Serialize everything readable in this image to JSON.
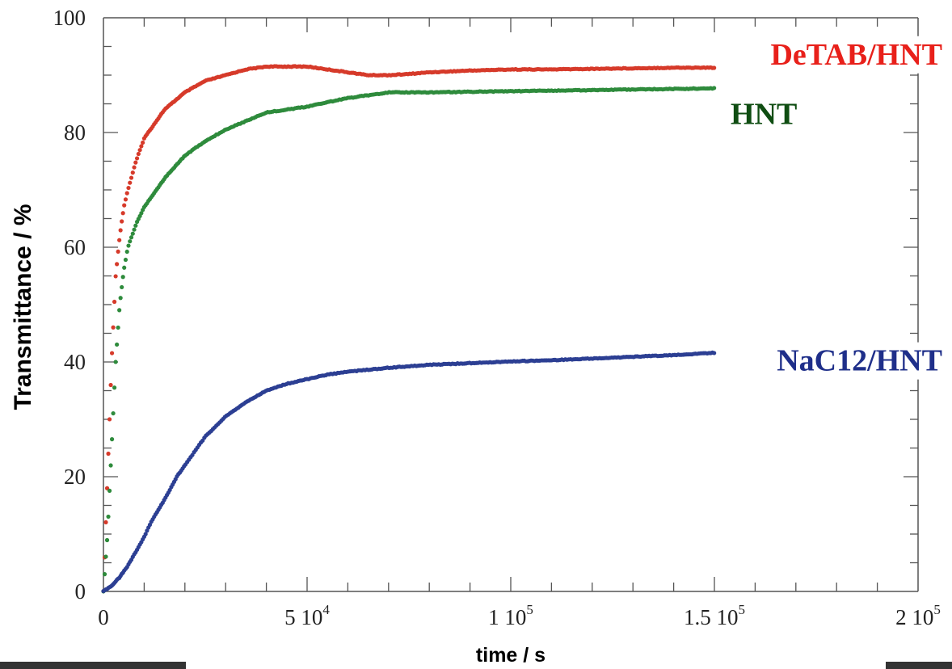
{
  "chart_data": {
    "type": "scatter",
    "xlabel": "time / s",
    "ylabel": "Transmittance / %",
    "xlim": [
      0,
      200000
    ],
    "ylim": [
      0,
      100
    ],
    "x_ticks": [
      {
        "value": 0,
        "mantissa": "0",
        "exponent": ""
      },
      {
        "value": 50000,
        "mantissa": "5 10",
        "exponent": "4"
      },
      {
        "value": 100000,
        "mantissa": "1 10",
        "exponent": "5"
      },
      {
        "value": 150000,
        "mantissa": "1.5 10",
        "exponent": "5"
      },
      {
        "value": 200000,
        "mantissa": "2 10",
        "exponent": "5"
      }
    ],
    "y_ticks": [
      0,
      20,
      40,
      60,
      80,
      100
    ],
    "grid": false,
    "series": [
      {
        "name": "DeTAB/HNT",
        "color": "#d63a2a",
        "label_color": "#e8201a",
        "x": [
          0,
          1000,
          2000,
          3000,
          4000,
          5000,
          6000,
          8000,
          10000,
          15000,
          20000,
          25000,
          30000,
          35000,
          40000,
          45000,
          50000,
          55000,
          60000,
          65000,
          70000,
          75000,
          80000,
          90000,
          100000,
          110000,
          120000,
          130000,
          140000,
          150000
        ],
        "y": [
          0,
          20,
          40,
          55,
          62,
          67,
          70,
          75,
          79,
          84,
          87,
          89,
          90,
          91,
          91.5,
          91.5,
          91.5,
          91,
          90.5,
          90,
          90,
          90.2,
          90.5,
          90.8,
          91,
          91,
          91.1,
          91.2,
          91.3,
          91.3
        ]
      },
      {
        "name": "HNT",
        "color": "#2e8b3c",
        "label_color": "#0f4d12",
        "x": [
          0,
          1000,
          2000,
          3000,
          4000,
          5000,
          6000,
          8000,
          10000,
          15000,
          20000,
          25000,
          30000,
          35000,
          40000,
          45000,
          50000,
          55000,
          60000,
          65000,
          70000,
          75000,
          80000,
          90000,
          100000,
          110000,
          120000,
          130000,
          140000,
          150000
        ],
        "y": [
          0,
          10,
          25,
          40,
          50,
          56,
          60,
          64,
          67,
          72,
          76,
          78.5,
          80.5,
          82,
          83.5,
          84,
          84.5,
          85.3,
          86,
          86.5,
          87,
          87,
          87,
          87.1,
          87.2,
          87.3,
          87.4,
          87.5,
          87.6,
          87.7
        ]
      },
      {
        "name": "NaC12/HNT",
        "color": "#2c3f93",
        "label_color": "#1f2f8a",
        "x": [
          0,
          2000,
          4000,
          6000,
          8000,
          10000,
          12000,
          15000,
          18000,
          20000,
          25000,
          30000,
          35000,
          40000,
          45000,
          50000,
          55000,
          60000,
          70000,
          80000,
          90000,
          100000,
          110000,
          120000,
          130000,
          140000,
          150000
        ],
        "y": [
          0,
          1,
          2.5,
          4.5,
          7,
          9.5,
          12.5,
          16,
          20,
          22,
          27,
          30.5,
          33,
          35,
          36.2,
          37,
          37.8,
          38.3,
          39,
          39.5,
          39.8,
          40.1,
          40.3,
          40.6,
          40.9,
          41.2,
          41.6
        ]
      }
    ]
  }
}
